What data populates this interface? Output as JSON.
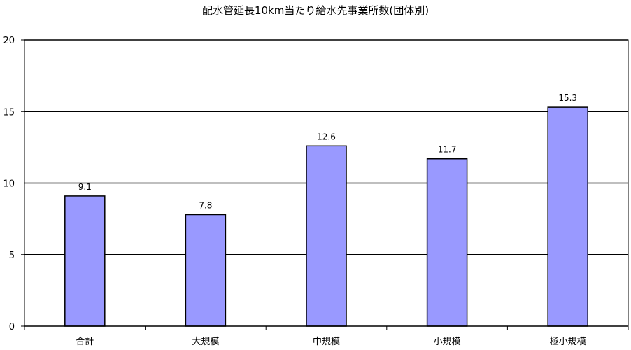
{
  "chart_data": {
    "type": "bar",
    "title": "配水管延長10km当たり給水先事業所数(団体別)",
    "xlabel": "",
    "ylabel": "",
    "categories": [
      "合計",
      "大規模",
      "中規模",
      "小規模",
      "極小規模"
    ],
    "values": [
      9.1,
      7.8,
      12.6,
      11.7,
      15.3
    ],
    "value_labels": [
      "9.1",
      "7.8",
      "12.6",
      "11.7",
      "15.3"
    ],
    "ylim": [
      0,
      20
    ],
    "yticks": [
      0,
      5,
      10,
      15,
      20
    ],
    "grid": true,
    "legend": "none",
    "bar_color": "#9999ff",
    "bar_stroke": "#000000"
  }
}
